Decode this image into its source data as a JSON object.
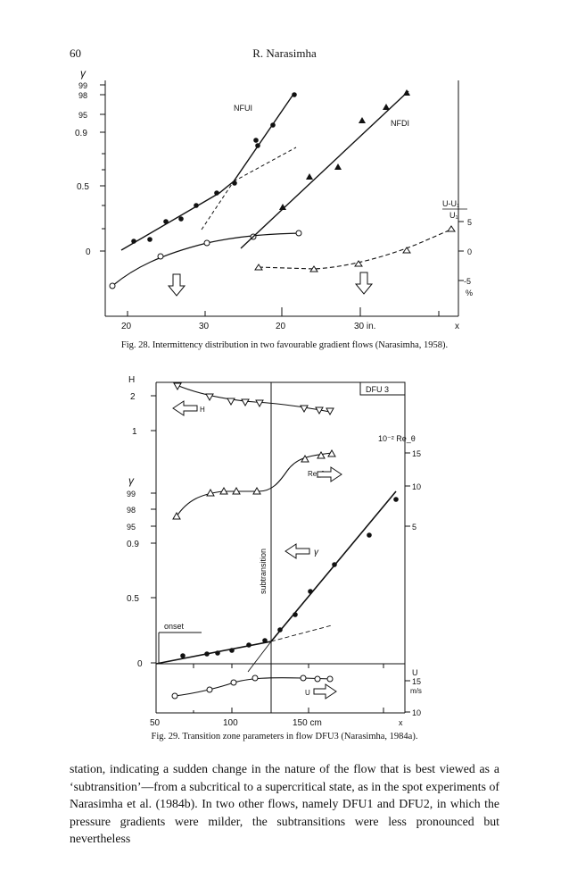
{
  "header": {
    "page_number": "60",
    "running_head": "R. Narasimha"
  },
  "fig28": {
    "caption": "Fig. 28. Intermittency distribution in two favourable gradient flows (Narasimha, 1958).",
    "y_ticks": [
      "99",
      "98",
      "95",
      "0.9",
      "0.5",
      "0"
    ],
    "gamma_symbol": "γ",
    "x_ticks_left": [
      "20",
      "30"
    ],
    "x_ticks_right": [
      "20",
      "30 in."
    ],
    "x_label": "x",
    "right_axis_label": "U-U₁",
    "right_axis_denominator": "U₁",
    "right_ticks": [
      "5",
      "0",
      "-5"
    ],
    "right_unit": "%",
    "label_nfu1": "NFUI",
    "label_nfd1": "NFDI"
  },
  "fig29": {
    "caption": "Fig. 29. Transition zone parameters in flow DFU3 (Narasimha, 1984a).",
    "title_box": "DFU 3",
    "h_axis_label": "H",
    "h_ticks": [
      "2",
      "1"
    ],
    "gamma_symbol": "γ",
    "gamma_ticks": [
      "99",
      "98",
      "95",
      "0.9",
      "0.5",
      "0"
    ],
    "re_axis_label": "10⁻² Re_θ",
    "re_ticks": [
      "15",
      "10",
      "5"
    ],
    "re_label": "Re_θ",
    "h_arrow_label": "H",
    "gamma_arrow_label": "γ",
    "u_arrow_label": "U",
    "onset_label": "onset",
    "subtransition_label": "subtransition",
    "u_axis_label": "U",
    "u_ticks": [
      "15",
      "10"
    ],
    "u_unit": "m/s",
    "x_ticks": [
      "50",
      "100",
      "150 cm"
    ],
    "x_label": "x"
  },
  "body": {
    "paragraph": "station, indicating a sudden change in the nature of the flow that is best viewed as a ‘subtransition’—from a subcritical to a supercritical state, as in the spot experiments of Narasimha et al. (1984b). In two other flows, namely DFU1 and DFU2, in which the pressure gradients were milder, the subtransitions were less pronounced but nevertheless"
  }
}
